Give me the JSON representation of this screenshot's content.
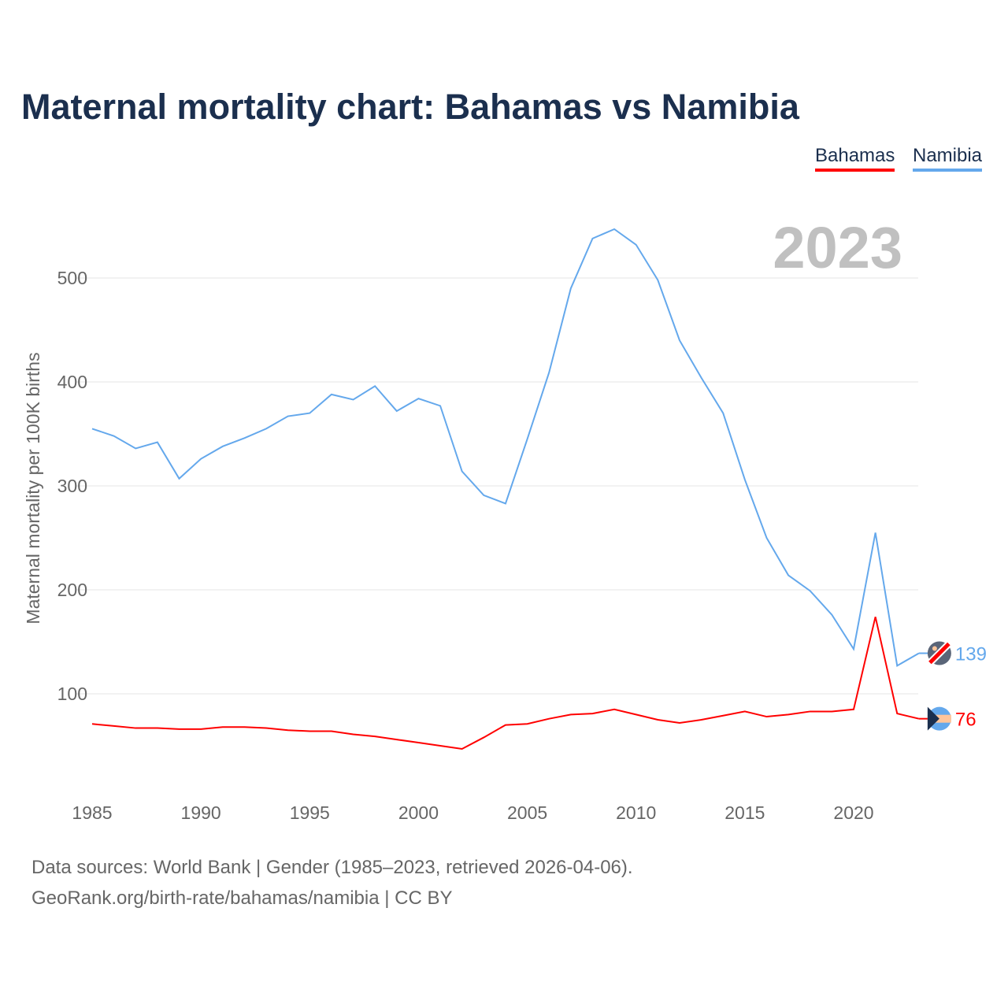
{
  "chart_data": {
    "type": "line",
    "title": "Maternal mortality chart: Bahamas vs Namibia",
    "ylabel": "Maternal mortality per 100K births",
    "xlabel": "",
    "year_label": "2023",
    "x": [
      1985,
      1986,
      1987,
      1988,
      1989,
      1990,
      1991,
      1992,
      1993,
      1994,
      1995,
      1996,
      1997,
      1998,
      1999,
      2000,
      2001,
      2002,
      2003,
      2004,
      2005,
      2006,
      2007,
      2008,
      2009,
      2010,
      2011,
      2012,
      2013,
      2014,
      2015,
      2016,
      2017,
      2018,
      2019,
      2020,
      2021,
      2022,
      2023
    ],
    "xlim": [
      1985,
      2023
    ],
    "ylim": [
      0,
      560
    ],
    "xticks": [
      1985,
      1990,
      1995,
      2000,
      2005,
      2010,
      2015,
      2020
    ],
    "yticks": [
      100,
      200,
      300,
      400,
      500
    ],
    "grid": true,
    "legend": "top-right",
    "series": [
      {
        "name": "Bahamas",
        "color": "#ff0000",
        "end_label": "76",
        "values": [
          71,
          69,
          67,
          67,
          66,
          66,
          68,
          68,
          67,
          65,
          64,
          64,
          61,
          59,
          56,
          53,
          50,
          47,
          58,
          70,
          71,
          76,
          80,
          81,
          85,
          80,
          75,
          72,
          75,
          79,
          83,
          78,
          80,
          83,
          83,
          85,
          174,
          81,
          76
        ]
      },
      {
        "name": "Namibia",
        "color": "#64a8ec",
        "end_label": "139",
        "values": [
          355,
          348,
          336,
          342,
          307,
          326,
          338,
          346,
          355,
          367,
          370,
          388,
          383,
          396,
          372,
          384,
          377,
          314,
          291,
          283,
          345,
          409,
          490,
          538,
          547,
          532,
          498,
          440,
          404,
          370,
          306,
          250,
          214,
          199,
          176,
          143,
          255,
          127,
          139
        ]
      }
    ]
  },
  "footer": {
    "line1": "Data sources: World Bank | Gender (1985–2023, retrieved 2026-04-06).",
    "line2": "GeoRank.org/birth-rate/bahamas/namibia | CC BY"
  }
}
